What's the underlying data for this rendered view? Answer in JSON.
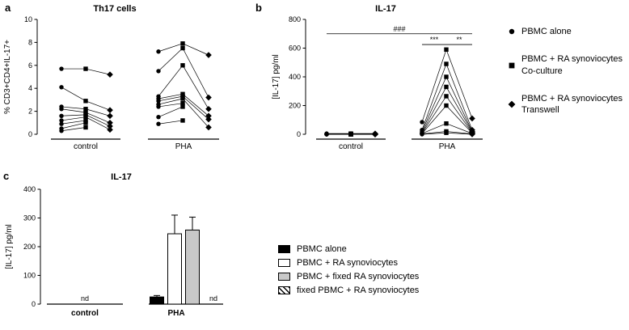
{
  "figure": {
    "background": "#ffffff",
    "panels": {
      "a": {
        "label": "a"
      },
      "b": {
        "label": "b"
      },
      "c": {
        "label": "c"
      }
    }
  },
  "legend_ab": {
    "items": [
      {
        "marker": "circle",
        "lines": [
          "PBMC alone"
        ]
      },
      {
        "marker": "square",
        "lines": [
          "PBMC + RA synoviocytes",
          "Co-culture"
        ]
      },
      {
        "marker": "diamond",
        "lines": [
          "PBMC + RA synoviocytes",
          "Transwell"
        ]
      }
    ]
  },
  "legend_c": {
    "items": [
      {
        "fill": "#000000",
        "label": "PBMC alone"
      },
      {
        "fill": "#ffffff",
        "label": "PBMC + RA synoviocytes"
      },
      {
        "fill": "#c8c8c8",
        "label": "PBMC + fixed RA synoviocytes"
      },
      {
        "fill": "hatched",
        "label": "fixed PBMC + RA synoviocytes"
      }
    ]
  },
  "chart_data": [
    {
      "panel": "a",
      "type": "scatter",
      "title": "Th17 cells",
      "ylabel": "% CD3+CD4+IL-17+",
      "ylim": [
        0,
        10
      ],
      "yticks": [
        0,
        2,
        4,
        6,
        8,
        10
      ],
      "groups": [
        "control",
        "PHA"
      ],
      "series_names": [
        "PBMC alone",
        "PBMC + RA synoviocytes Co-culture",
        "PBMC + RA synoviocytes Transwell"
      ],
      "markers": [
        "circle",
        "square",
        "diamond"
      ],
      "paired_values": {
        "control": [
          [
            5.7,
            5.7,
            5.2
          ],
          [
            4.1,
            2.9,
            2.1
          ],
          [
            2.4,
            2.2,
            1.6
          ],
          [
            2.2,
            1.9,
            1.0
          ],
          [
            1.6,
            1.7,
            0.7
          ],
          [
            1.2,
            1.5,
            0.4
          ],
          [
            0.9,
            1.2,
            null
          ],
          [
            0.5,
            1.0,
            null
          ],
          [
            0.3,
            0.6,
            null
          ]
        ],
        "PHA": [
          [
            7.2,
            7.9,
            6.9
          ],
          [
            5.5,
            7.5,
            3.2
          ],
          [
            3.3,
            6.0,
            2.2
          ],
          [
            3.1,
            3.5,
            1.6
          ],
          [
            2.9,
            3.3,
            1.3
          ],
          [
            2.6,
            3.1,
            0.6
          ],
          [
            2.4,
            2.7,
            null
          ],
          [
            1.5,
            2.4,
            null
          ],
          [
            0.9,
            1.2,
            null
          ]
        ]
      }
    },
    {
      "panel": "b",
      "type": "scatter",
      "title": "IL-17",
      "ylabel": "[IL-17] pg/ml",
      "ylim": [
        0,
        800
      ],
      "yticks": [
        0,
        200,
        400,
        600,
        800
      ],
      "groups": [
        "control",
        "PHA"
      ],
      "series_names": [
        "PBMC alone",
        "PBMC + RA synoviocytes Co-culture",
        "PBMC + RA synoviocytes Transwell"
      ],
      "markers": [
        "circle",
        "square",
        "diamond"
      ],
      "paired_values": {
        "control": [
          [
            5,
            5,
            5
          ],
          [
            2,
            2,
            2
          ],
          [
            0,
            0,
            0
          ],
          [
            0,
            0,
            0
          ],
          [
            0,
            0,
            0
          ],
          [
            0,
            0,
            0
          ],
          [
            0,
            0,
            0
          ],
          [
            0,
            0,
            0
          ],
          [
            0,
            0,
            0
          ]
        ],
        "PHA": [
          [
            85,
            590,
            110
          ],
          [
            30,
            490,
            30
          ],
          [
            20,
            400,
            20
          ],
          [
            12,
            330,
            15
          ],
          [
            8,
            265,
            10
          ],
          [
            5,
            200,
            8
          ],
          [
            5,
            75,
            5
          ],
          [
            2,
            20,
            2
          ],
          [
            0,
            10,
            0
          ]
        ]
      },
      "annotations": [
        {
          "text": "###",
          "y": 700,
          "from": {
            "group": 0,
            "col": 0
          },
          "to": {
            "group": 1,
            "col": 2
          }
        },
        {
          "text": "***",
          "y": 625,
          "from": {
            "group": 1,
            "col": 0
          },
          "to": {
            "group": 1,
            "col": 1
          }
        },
        {
          "text": "**",
          "y": 625,
          "from": {
            "group": 1,
            "col": 1
          },
          "to": {
            "group": 1,
            "col": 2
          }
        }
      ]
    },
    {
      "panel": "c",
      "type": "bar",
      "title": "IL-17",
      "ylabel": "[IL-17] pg/ml",
      "ylim": [
        0,
        400
      ],
      "yticks": [
        0,
        100,
        200,
        300,
        400
      ],
      "groups": [
        "control",
        "PHA"
      ],
      "series": [
        {
          "name": "PBMC alone",
          "fill": "#000000",
          "values": [
            null,
            25
          ],
          "errors": [
            null,
            5
          ]
        },
        {
          "name": "PBMC + RA synoviocytes",
          "fill": "#ffffff",
          "values": [
            null,
            245
          ],
          "errors": [
            null,
            65
          ]
        },
        {
          "name": "PBMC + fixed RA synoviocytes",
          "fill": "#c8c8c8",
          "values": [
            null,
            258
          ],
          "errors": [
            null,
            45
          ]
        },
        {
          "name": "fixed PBMC + RA synoviocytes",
          "fill": "hatched",
          "values": [
            null,
            null
          ],
          "errors": [
            null,
            null
          ]
        }
      ],
      "nd_labels": [
        {
          "group": 0,
          "col": null,
          "text": "nd"
        },
        {
          "group": 1,
          "col": 3,
          "text": "nd"
        }
      ]
    }
  ]
}
